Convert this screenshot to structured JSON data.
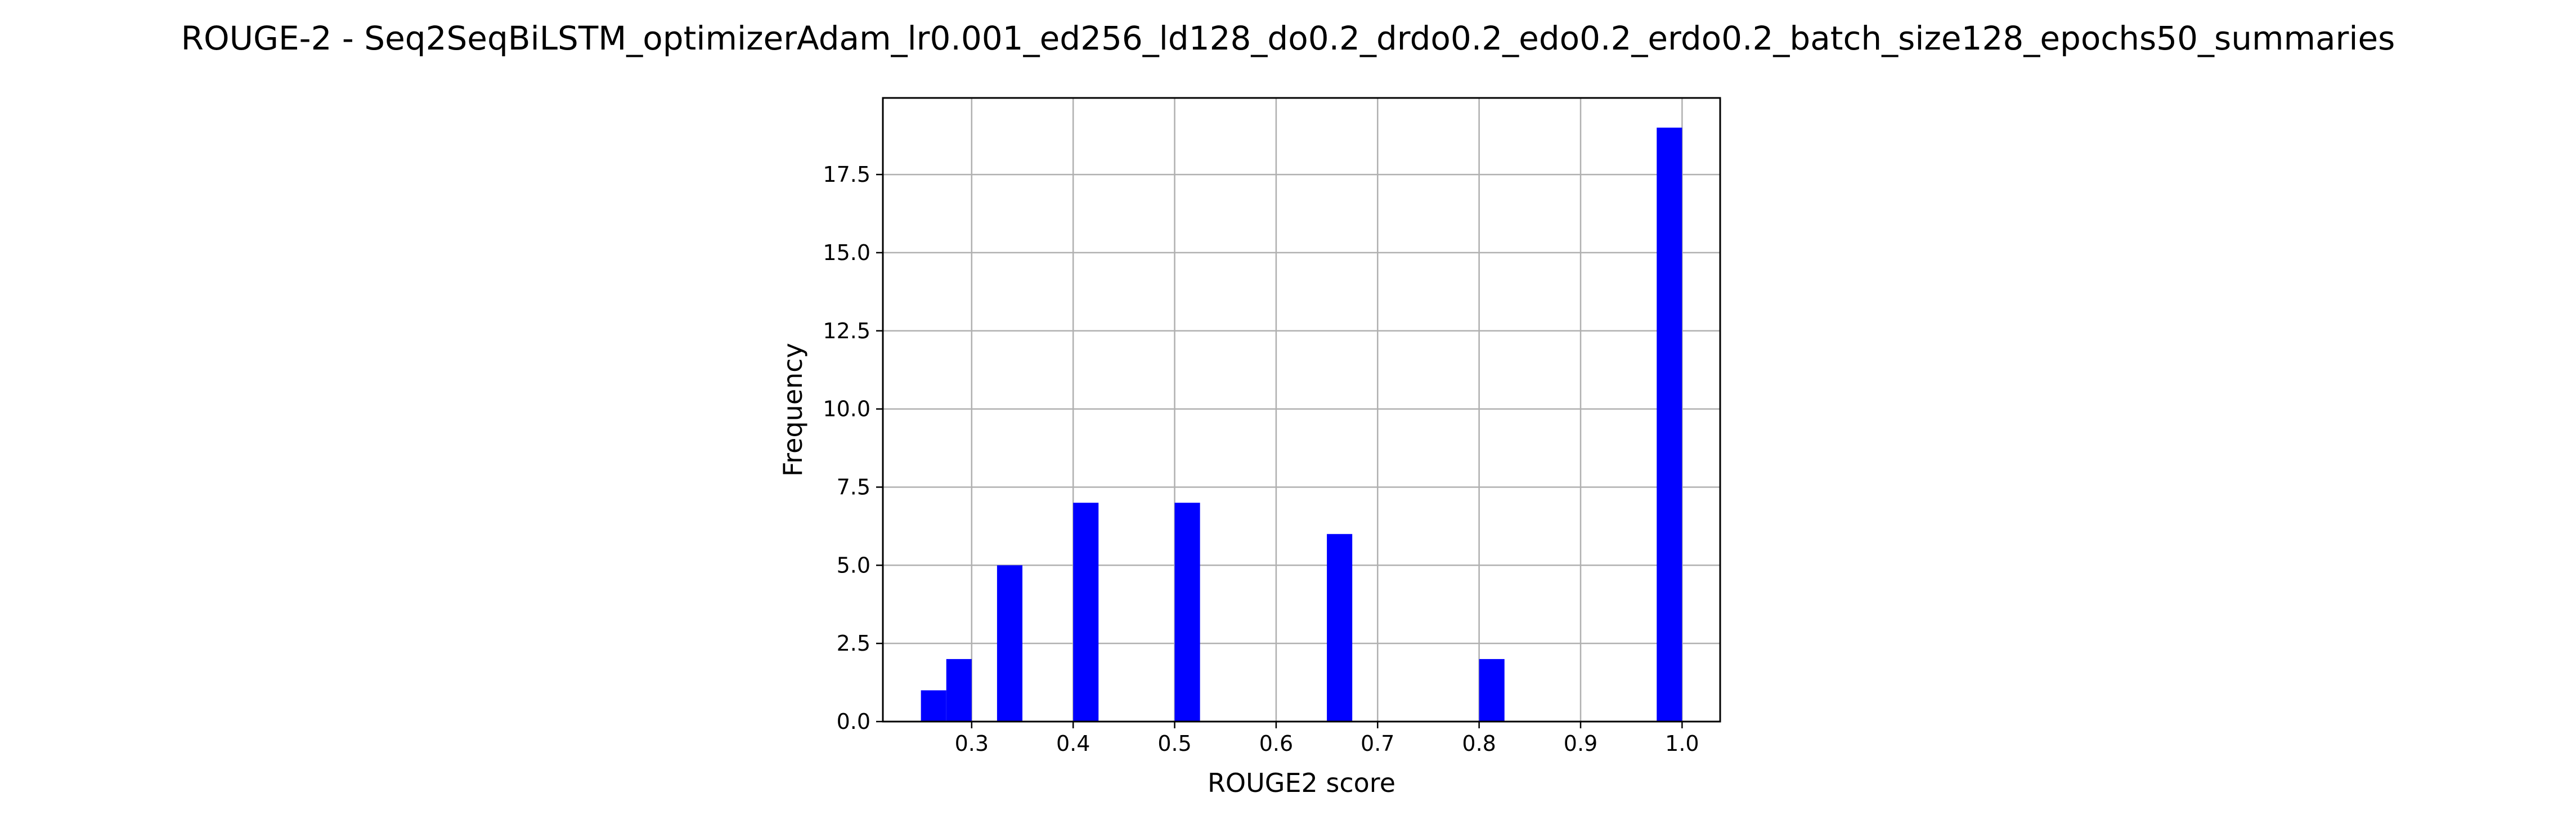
{
  "chart_data": {
    "type": "bar",
    "title": "ROUGE-2 - Seq2SeqBiLSTM_optimizerAdam_lr0.001_ed256_ld128_do0.2_drdo0.2_edo0.2_erdo0.2_batch_size128_epochs50_summaries",
    "xlabel": "ROUGE2 score",
    "ylabel": "Frequency",
    "xlim": [
      0.2125,
      1.0375
    ],
    "ylim": [
      0,
      19.95
    ],
    "grid": true,
    "bar_color": "#0000ff",
    "bin_width": 0.025,
    "bins": [
      {
        "x0": 0.25,
        "x1": 0.275,
        "value": 1
      },
      {
        "x0": 0.275,
        "x1": 0.3,
        "value": 2
      },
      {
        "x0": 0.325,
        "x1": 0.35,
        "value": 5
      },
      {
        "x0": 0.4,
        "x1": 0.425,
        "value": 7
      },
      {
        "x0": 0.5,
        "x1": 0.525,
        "value": 7
      },
      {
        "x0": 0.65,
        "x1": 0.675,
        "value": 6
      },
      {
        "x0": 0.8,
        "x1": 0.825,
        "value": 2
      },
      {
        "x0": 0.975,
        "x1": 1.0,
        "value": 19
      }
    ],
    "xticks": [
      0.3,
      0.4,
      0.5,
      0.6,
      0.7,
      0.8,
      0.9,
      1.0
    ],
    "xtick_labels": [
      "0.3",
      "0.4",
      "0.5",
      "0.6",
      "0.7",
      "0.8",
      "0.9",
      "1.0"
    ],
    "yticks": [
      0,
      2.5,
      5,
      7.5,
      10,
      12.5,
      15,
      17.5
    ],
    "ytick_labels": [
      "0.0",
      "2.5",
      "5.0",
      "7.5",
      "10.0",
      "12.5",
      "15.0",
      "17.5"
    ]
  }
}
